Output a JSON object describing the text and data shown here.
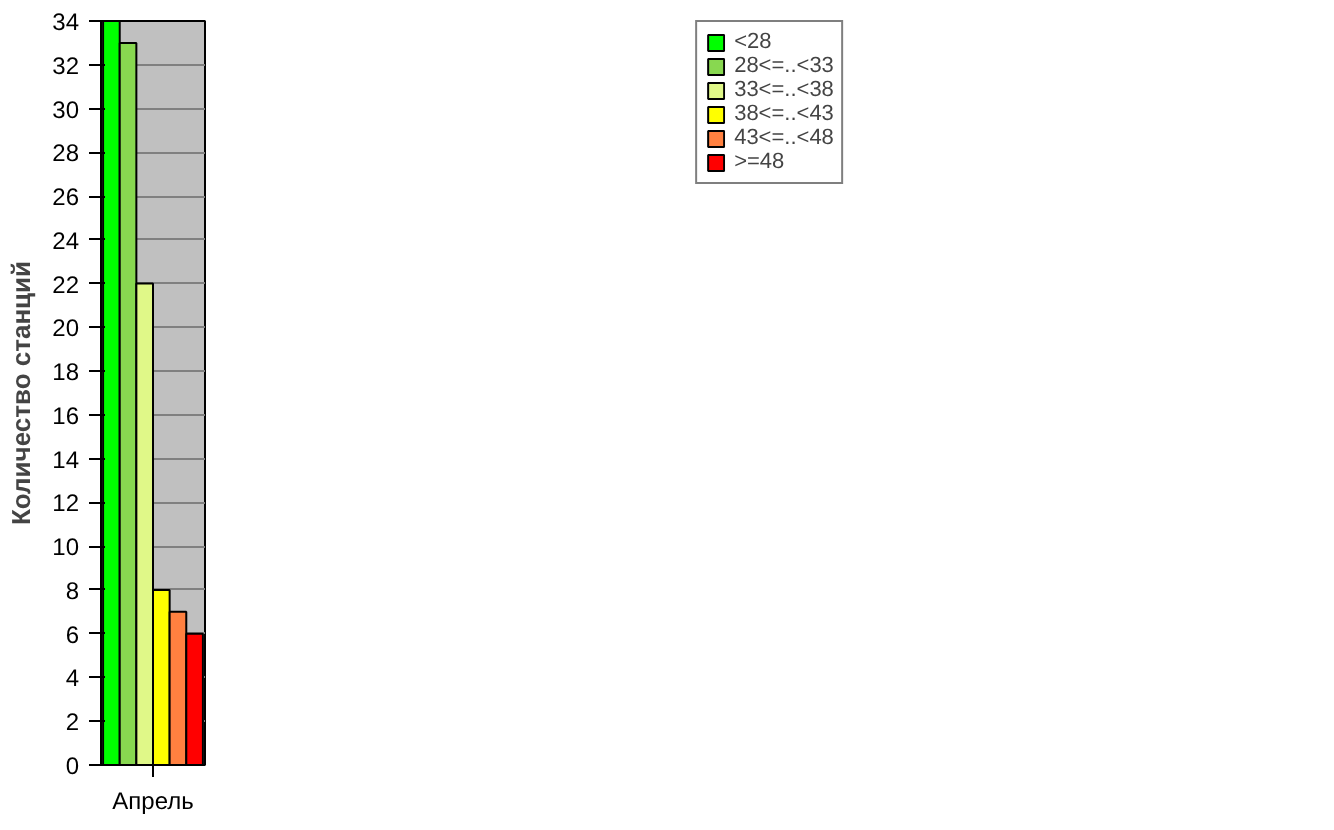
{
  "chart_data": {
    "type": "bar",
    "ylabel": "Количество станций",
    "categories": [
      "Апрель"
    ],
    "series": [
      {
        "name": "<28",
        "color": "#00ff00",
        "values": [
          34
        ]
      },
      {
        "name": "28<=..<33",
        "color": "#88d850",
        "values": [
          33
        ]
      },
      {
        "name": "33<=..<38",
        "color": "#e0f888",
        "values": [
          22
        ]
      },
      {
        "name": "38<=..<43",
        "color": "#ffff00",
        "values": [
          8
        ]
      },
      {
        "name": "43<=..<48",
        "color": "#ff8040",
        "values": [
          7
        ]
      },
      {
        "name": ">=48",
        "color": "#ff0000",
        "values": [
          6
        ]
      }
    ],
    "ylim": [
      0,
      34
    ],
    "yticks": [
      0,
      2,
      4,
      6,
      8,
      10,
      12,
      14,
      16,
      18,
      20,
      22,
      24,
      26,
      28,
      30,
      32,
      34
    ],
    "grid": "y",
    "legend": "top right"
  }
}
